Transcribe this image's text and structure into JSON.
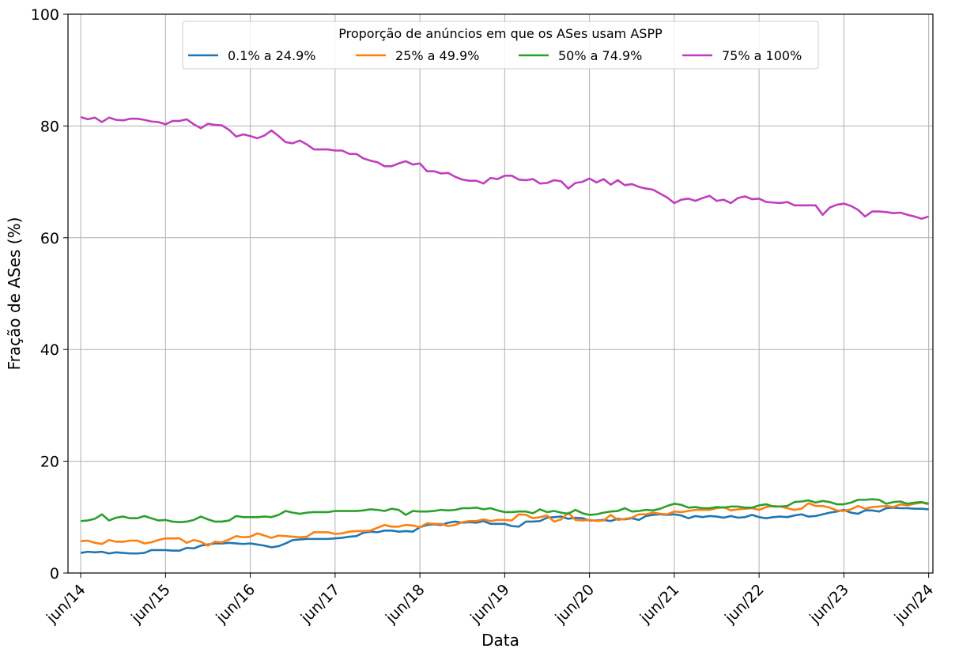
{
  "chart_data": {
    "type": "line",
    "title": "",
    "xlabel": "Data",
    "ylabel": "Fração de ASes (%)",
    "ylim": [
      0,
      100
    ],
    "yticks": [
      0,
      20,
      40,
      60,
      80,
      100
    ],
    "x_tick_labels": [
      "jun/14",
      "jun/15",
      "jun/16",
      "jun/17",
      "jun/18",
      "jun/19",
      "jun/20",
      "jun/21",
      "jun/22",
      "jun/23",
      "jun/24"
    ],
    "x_range_years": [
      2013.85,
      2024.05
    ],
    "grid": true,
    "legend": {
      "title": "Proporção de anúncios em que os ASes usam ASPP",
      "placement": "top-center"
    },
    "x_sampling": "monthly, jun/14 (2014.0) to jun/24 (2024.0), 121 points per series",
    "series": [
      {
        "name": "0.1% a 24.9%",
        "color": "#1f77b4",
        "values": [
          3.6,
          3.8,
          3.7,
          3.8,
          3.5,
          3.7,
          3.6,
          3.5,
          3.5,
          3.6,
          4.1,
          4.1,
          4.1,
          4.0,
          4.0,
          4.5,
          4.4,
          4.9,
          5.1,
          5.3,
          5.3,
          5.4,
          5.3,
          5.2,
          5.3,
          5.1,
          4.9,
          4.6,
          4.8,
          5.3,
          5.9,
          6.0,
          6.1,
          6.1,
          6.1,
          6.1,
          6.2,
          6.3,
          6.5,
          6.6,
          7.2,
          7.4,
          7.3,
          7.6,
          7.6,
          7.4,
          7.5,
          7.4,
          8.2,
          8.6,
          8.7,
          8.6,
          9.0,
          9.2,
          9.0,
          9.1,
          9.0,
          9.3,
          8.8,
          8.8,
          8.8,
          8.4,
          8.3,
          9.2,
          9.2,
          9.3,
          9.9,
          10.0,
          10.1,
          9.7,
          9.9,
          9.8,
          9.4,
          9.4,
          9.5,
          9.3,
          9.7,
          9.6,
          9.8,
          9.5,
          10.2,
          10.4,
          10.5,
          10.4,
          10.5,
          10.3,
          9.8,
          10.2,
          10.0,
          10.2,
          10.1,
          9.9,
          10.2,
          9.9,
          10.0,
          10.4,
          10.0,
          9.8,
          10.0,
          10.1,
          10.0,
          10.3,
          10.5,
          10.1,
          10.2,
          10.5,
          10.8,
          11.0,
          11.3,
          10.8,
          10.6,
          11.2,
          11.2,
          11.0,
          11.6,
          11.7,
          11.6,
          11.6,
          11.5,
          11.5,
          11.4
        ]
      },
      {
        "name": "25% a 49.9%",
        "color": "#ff7f0e",
        "values": [
          5.7,
          5.8,
          5.4,
          5.2,
          5.9,
          5.6,
          5.6,
          5.8,
          5.8,
          5.3,
          5.5,
          5.9,
          6.2,
          6.2,
          6.2,
          5.4,
          5.9,
          5.6,
          4.9,
          5.6,
          5.5,
          6.0,
          6.6,
          6.4,
          6.5,
          7.1,
          6.7,
          6.3,
          6.7,
          6.6,
          6.5,
          6.4,
          6.5,
          7.3,
          7.3,
          7.3,
          7.0,
          7.1,
          7.4,
          7.5,
          7.5,
          7.6,
          8.1,
          8.6,
          8.3,
          8.3,
          8.6,
          8.5,
          8.2,
          8.9,
          8.8,
          8.8,
          8.4,
          8.6,
          9.1,
          9.3,
          9.3,
          9.6,
          9.3,
          9.5,
          9.5,
          9.4,
          10.5,
          10.4,
          9.8,
          10.0,
          10.3,
          9.2,
          9.6,
          10.8,
          9.5,
          9.4,
          9.5,
          9.3,
          9.4,
          10.4,
          9.5,
          9.7,
          9.9,
          10.5,
          10.5,
          10.8,
          10.6,
          10.5,
          11.0,
          10.9,
          11.1,
          11.3,
          11.3,
          11.3,
          11.6,
          11.8,
          11.2,
          11.4,
          11.5,
          11.6,
          11.3,
          11.8,
          12.0,
          11.9,
          11.6,
          11.3,
          11.5,
          12.5,
          12.0,
          12.0,
          11.7,
          11.2,
          11.1,
          11.4,
          12.0,
          11.5,
          11.8,
          11.9,
          12.0,
          11.8,
          12.3,
          12.1,
          12.4,
          12.6,
          12.3
        ]
      },
      {
        "name": "50% a 74.9%",
        "color": "#2ca02c",
        "values": [
          9.3,
          9.4,
          9.7,
          10.5,
          9.4,
          9.9,
          10.1,
          9.8,
          9.8,
          10.2,
          9.8,
          9.4,
          9.5,
          9.2,
          9.1,
          9.2,
          9.5,
          10.1,
          9.6,
          9.2,
          9.2,
          9.4,
          10.2,
          10.0,
          10.0,
          10.0,
          10.1,
          10.0,
          10.4,
          11.1,
          10.8,
          10.6,
          10.8,
          10.9,
          10.9,
          10.9,
          11.1,
          11.1,
          11.1,
          11.1,
          11.2,
          11.4,
          11.3,
          11.1,
          11.5,
          11.3,
          10.4,
          11.1,
          11.0,
          11.0,
          11.1,
          11.3,
          11.2,
          11.3,
          11.6,
          11.6,
          11.7,
          11.4,
          11.6,
          11.2,
          10.9,
          10.9,
          11.0,
          11.0,
          10.7,
          11.4,
          10.9,
          11.1,
          10.8,
          10.6,
          11.3,
          10.7,
          10.4,
          10.5,
          10.8,
          11.0,
          11.1,
          11.6,
          11.0,
          11.1,
          11.3,
          11.2,
          11.5,
          12.0,
          12.4,
          12.2,
          11.7,
          11.8,
          11.6,
          11.6,
          11.8,
          11.7,
          11.9,
          11.9,
          11.7,
          11.7,
          12.1,
          12.3,
          11.9,
          11.9,
          12.0,
          12.7,
          12.8,
          13.0,
          12.6,
          12.9,
          12.7,
          12.3,
          12.3,
          12.6,
          13.1,
          13.1,
          13.2,
          13.1,
          12.4,
          12.7,
          12.8,
          12.4,
          12.6,
          12.7,
          12.4
        ]
      },
      {
        "name": "75% a 100%",
        "color": "#bf3fbf",
        "values": [
          81.6,
          81.2,
          81.5,
          80.7,
          81.5,
          81.1,
          81.0,
          81.3,
          81.3,
          81.1,
          80.8,
          80.7,
          80.3,
          80.9,
          80.9,
          81.2,
          80.3,
          79.6,
          80.4,
          80.2,
          80.1,
          79.3,
          78.1,
          78.5,
          78.2,
          77.8,
          78.3,
          79.2,
          78.2,
          77.1,
          76.9,
          77.4,
          76.7,
          75.8,
          75.8,
          75.8,
          75.6,
          75.6,
          75.0,
          75.0,
          74.2,
          73.8,
          73.5,
          72.8,
          72.8,
          73.3,
          73.7,
          73.1,
          73.3,
          71.9,
          71.9,
          71.5,
          71.6,
          70.9,
          70.4,
          70.2,
          70.2,
          69.7,
          70.7,
          70.5,
          71.1,
          71.1,
          70.4,
          70.3,
          70.5,
          69.7,
          69.8,
          70.3,
          70.1,
          68.8,
          69.8,
          70.0,
          70.6,
          69.9,
          70.5,
          69.5,
          70.3,
          69.4,
          69.6,
          69.1,
          68.8,
          68.6,
          67.9,
          67.2,
          66.2,
          66.8,
          67.0,
          66.6,
          67.1,
          67.5,
          66.6,
          66.8,
          66.2,
          67.1,
          67.4,
          66.9,
          67.0,
          66.4,
          66.3,
          66.2,
          66.4,
          65.8,
          65.8,
          65.8,
          65.8,
          64.1,
          65.4,
          65.9,
          66.1,
          65.7,
          65.0,
          63.8,
          64.7,
          64.7,
          64.6,
          64.4,
          64.5,
          64.1,
          63.8,
          63.4,
          63.8
        ]
      }
    ]
  }
}
